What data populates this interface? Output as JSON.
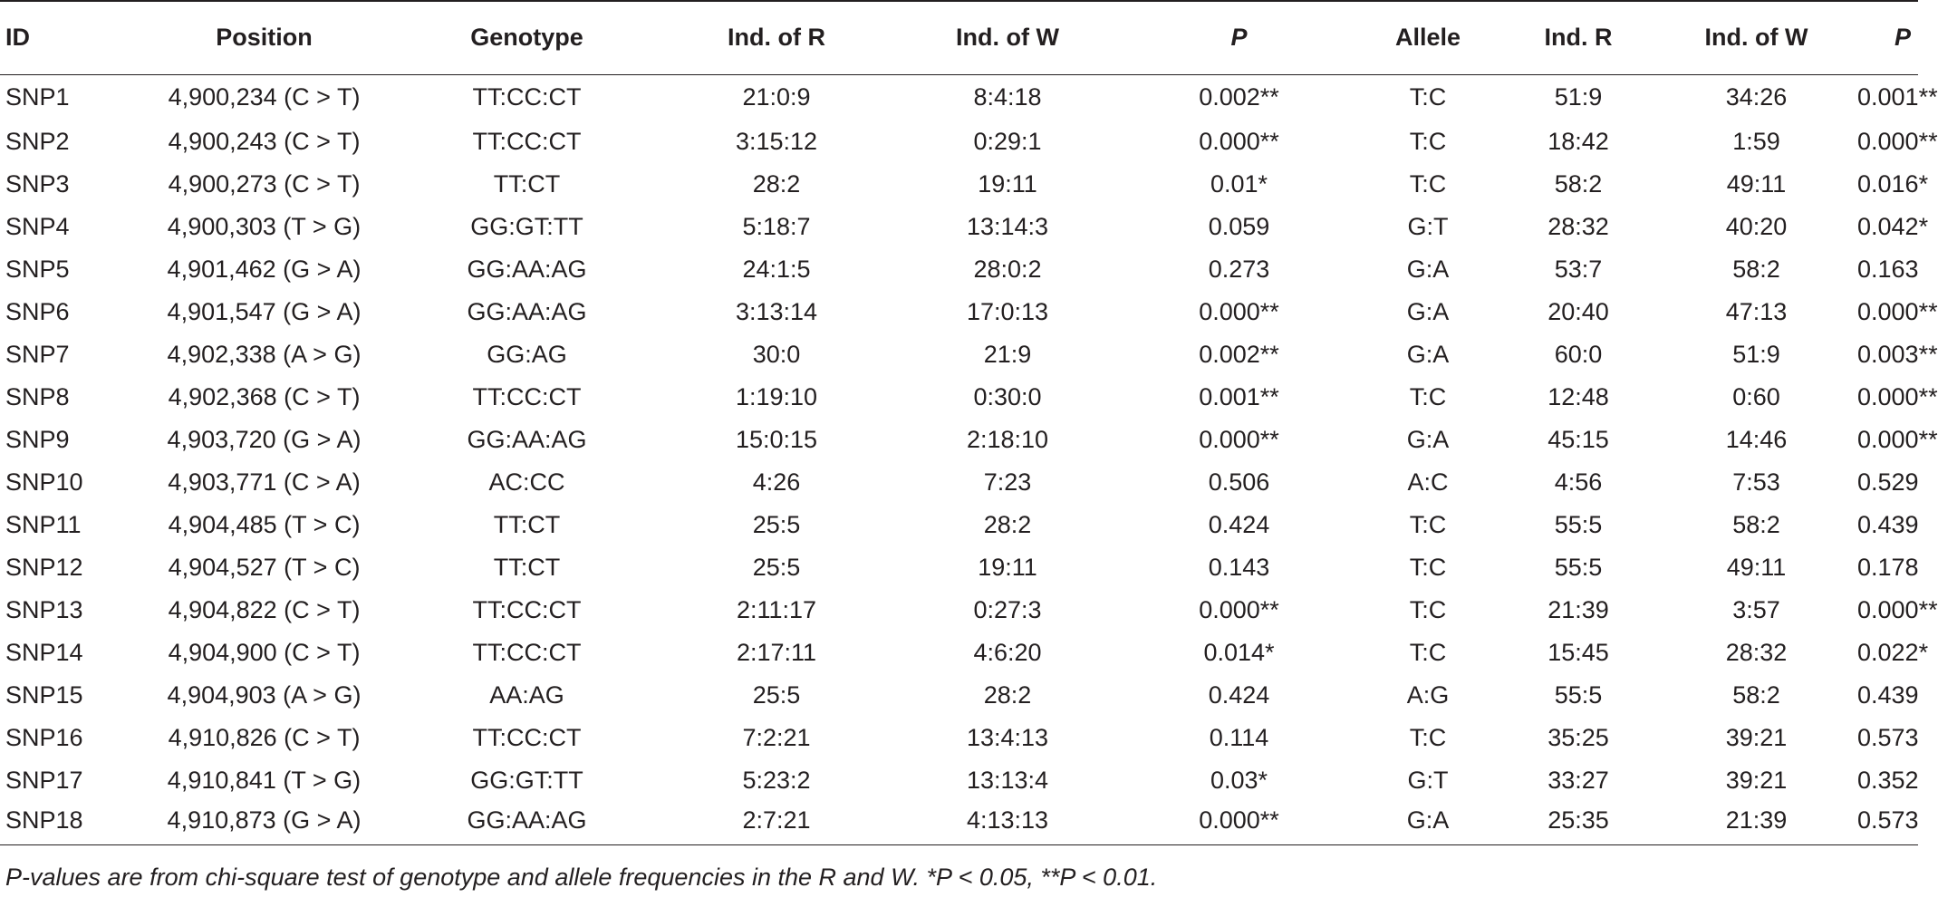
{
  "table": {
    "headers": [
      "ID",
      "Position",
      "Genotype",
      "Ind. of R",
      "Ind. of W",
      "P",
      "Allele",
      "Ind. R",
      "Ind. of W",
      "P"
    ],
    "rows": [
      [
        "SNP1",
        "4,900,234 (C > T)",
        "TT:CC:CT",
        "21:0:9",
        "8:4:18",
        "0.002**",
        "T:C",
        "51:9",
        "34:26",
        "0.001**"
      ],
      [
        "SNP2",
        "4,900,243 (C > T)",
        "TT:CC:CT",
        "3:15:12",
        "0:29:1",
        "0.000**",
        "T:C",
        "18:42",
        "1:59",
        "0.000**"
      ],
      [
        "SNP3",
        "4,900,273 (C > T)",
        "TT:CT",
        "28:2",
        "19:11",
        "0.01*",
        "T:C",
        "58:2",
        "49:11",
        "0.016*"
      ],
      [
        "SNP4",
        "4,900,303 (T > G)",
        "GG:GT:TT",
        "5:18:7",
        "13:14:3",
        "0.059",
        "G:T",
        "28:32",
        "40:20",
        "0.042*"
      ],
      [
        "SNP5",
        "4,901,462 (G > A)",
        "GG:AA:AG",
        "24:1:5",
        "28:0:2",
        "0.273",
        "G:A",
        "53:7",
        "58:2",
        "0.163"
      ],
      [
        "SNP6",
        "4,901,547 (G > A)",
        "GG:AA:AG",
        "3:13:14",
        "17:0:13",
        "0.000**",
        "G:A",
        "20:40",
        "47:13",
        "0.000**"
      ],
      [
        "SNP7",
        "4,902,338 (A > G)",
        "GG:AG",
        "30:0",
        "21:9",
        "0.002**",
        "G:A",
        "60:0",
        "51:9",
        "0.003**"
      ],
      [
        "SNP8",
        "4,902,368 (C > T)",
        "TT:CC:CT",
        "1:19:10",
        "0:30:0",
        "0.001**",
        "T:C",
        "12:48",
        "0:60",
        "0.000**"
      ],
      [
        "SNP9",
        "4,903,720 (G > A)",
        "GG:AA:AG",
        "15:0:15",
        "2:18:10",
        "0.000**",
        "G:A",
        "45:15",
        "14:46",
        "0.000**"
      ],
      [
        "SNP10",
        "4,903,771 (C > A)",
        "AC:CC",
        "4:26",
        "7:23",
        "0.506",
        "A:C",
        "4:56",
        "7:53",
        "0.529"
      ],
      [
        "SNP11",
        "4,904,485 (T > C)",
        "TT:CT",
        "25:5",
        "28:2",
        "0.424",
        "T:C",
        "55:5",
        "58:2",
        "0.439"
      ],
      [
        "SNP12",
        "4,904,527 (T > C)",
        "TT:CT",
        "25:5",
        "19:11",
        "0.143",
        "T:C",
        "55:5",
        "49:11",
        "0.178"
      ],
      [
        "SNP13",
        "4,904,822 (C > T)",
        "TT:CC:CT",
        "2:11:17",
        "0:27:3",
        "0.000**",
        "T:C",
        "21:39",
        "3:57",
        "0.000**"
      ],
      [
        "SNP14",
        "4,904,900 (C > T)",
        "TT:CC:CT",
        "2:17:11",
        "4:6:20",
        "0.014*",
        "T:C",
        "15:45",
        "28:32",
        "0.022*"
      ],
      [
        "SNP15",
        "4,904,903 (A > G)",
        "AA:AG",
        "25:5",
        "28:2",
        "0.424",
        "A:G",
        "55:5",
        "58:2",
        "0.439"
      ],
      [
        "SNP16",
        "4,910,826 (C > T)",
        "TT:CC:CT",
        "7:2:21",
        "13:4:13",
        "0.114",
        "T:C",
        "35:25",
        "39:21",
        "0.573"
      ],
      [
        "SNP17",
        "4,910,841 (T > G)",
        "GG:GT:TT",
        "5:23:2",
        "13:13:4",
        "0.03*",
        "G:T",
        "33:27",
        "39:21",
        "0.352"
      ],
      [
        "SNP18",
        "4,910,873 (G > A)",
        "GG:AA:AG",
        "2:7:21",
        "4:13:13",
        "0.000**",
        "G:A",
        "25:35",
        "21:39",
        "0.573"
      ]
    ]
  },
  "footnote": "P-values are from chi-square test of genotype and allele frequencies in the R and W. *P < 0.05, **P < 0.01."
}
